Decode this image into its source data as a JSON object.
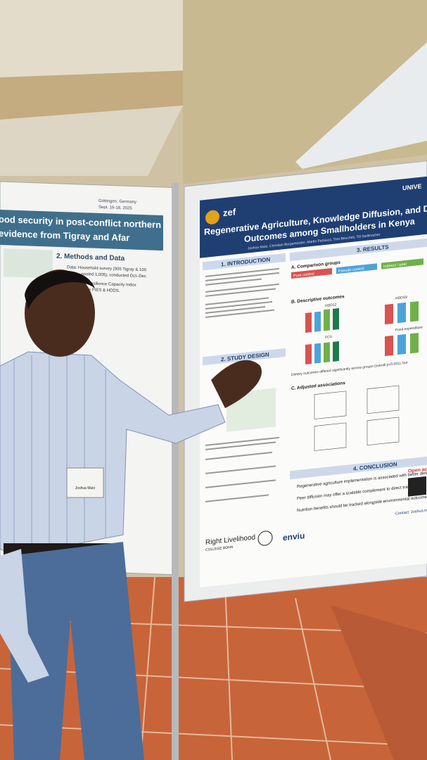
{
  "left_poster": {
    "title_lines": [
      "ood security in post-conflict northern",
      "evidence from Tigray and Afar"
    ],
    "venue": "Göttingen, Germany",
    "date": "Sept. 16-18, 2025",
    "section": "2. Methods and Data",
    "items": [
      "Data: Household survey (905 Tigray & 100",
      "Afar → pooled 1,005), conducted Oct–Dec",
      "Measures: Resilience Capacity Index",
      "variables are FIES & HDDS."
    ]
  },
  "right_poster": {
    "university": "UNIVE",
    "logo": "zef",
    "title_lines": [
      "Regenerative Agriculture, Knowledge Diffusion, and D",
      "Outcomes among Smallholders in Kenya"
    ],
    "authors": "Joshua Mulo, Christian Borgemeister, Martin Parlasca, Tina Beuchelt, Till Stellmacher",
    "sections": {
      "introduction": "1. INTRODUCTION",
      "design": "2. STUDY DESIGN",
      "results": "3. RESULTS",
      "conclusion": "4. CONCLUSION"
    },
    "comparison_heading": "A. Comparison groups",
    "groups": [
      "Pure control",
      "Pseudo control",
      "Indirect / peer"
    ],
    "descriptive_heading": "B. Descriptive outcomes",
    "outcomes": [
      "HDD12",
      "HDDS9",
      "FCS",
      "Food expenditure"
    ],
    "finding": "Dietary outcomes differed significantly across groups (overall p<0.001), but",
    "adjusted_heading": "C. Adjusted associations",
    "conclusions": [
      "Regenerative agriculture implementation is associated with better dietary diversity",
      "Peer diffusion may offer a scalable complement to direct training",
      "Nutrition benefits should be tracked alongside environmental outcomes."
    ],
    "partners": [
      "Right Livelihood",
      "COLLEGE BONN",
      "enviu"
    ],
    "open_access": "Open ac",
    "contact": "Contact: Joshua.m"
  },
  "badge": "Joshua Mulo"
}
